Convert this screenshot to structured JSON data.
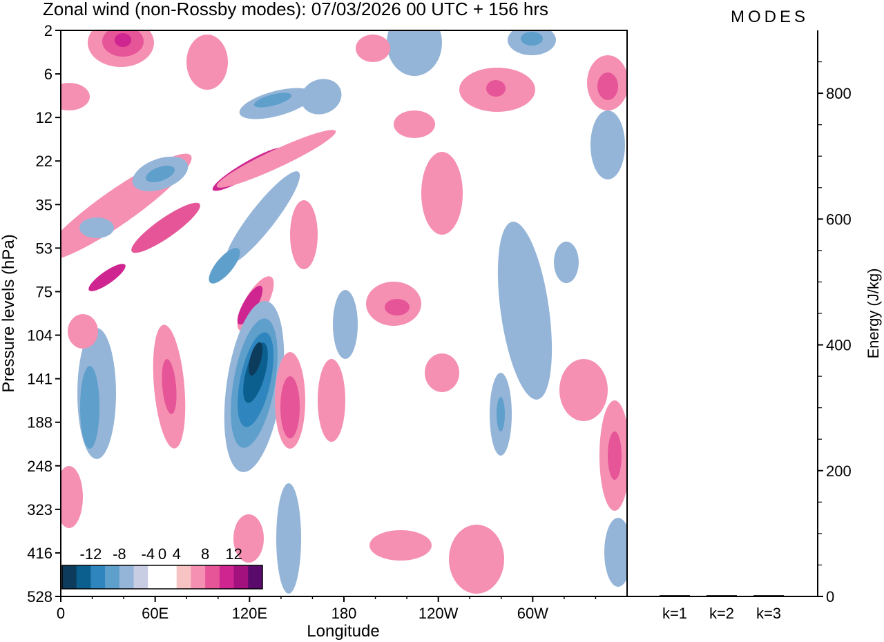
{
  "chart_data": [
    {
      "type": "heatmap",
      "title": "Zonal wind (non-Rossby modes):  07/03/2026  00 UTC  + 156 hrs",
      "xlabel": "Longitude",
      "ylabel": "Pressure levels (hPa)",
      "x_ticks": [
        "0",
        "60E",
        "120E",
        "180",
        "120W",
        "60W"
      ],
      "y_ticks": [
        "2",
        "6",
        "12",
        "22",
        "35",
        "53",
        "75",
        "104",
        "141",
        "188",
        "248",
        "323",
        "416",
        "528"
      ],
      "colorbar": {
        "labels": [
          "-12",
          "-8",
          "-4",
          "0",
          "4",
          "8",
          "12"
        ],
        "levels": [
          -14,
          -12,
          -10,
          -8,
          -6,
          -4,
          -2,
          2,
          4,
          6,
          8,
          10,
          12,
          14
        ],
        "colors": [
          "#0d3b5c",
          "#0a5f8e",
          "#2f86be",
          "#5f9fcb",
          "#94b5d8",
          "#c9cde4",
          "#ffffff",
          "#ffffff",
          "#f8c3c3",
          "#f590b2",
          "#e55598",
          "#cf2590",
          "#a3117e",
          "#5a0a6b"
        ]
      },
      "features": [
        {
          "sign": "negative",
          "lon": 125,
          "level": 141,
          "peak": -14
        },
        {
          "sign": "positive",
          "lon": 118,
          "level": 75,
          "peak": 10
        },
        {
          "sign": "positive",
          "lon": 120,
          "level": 22,
          "peak": 10
        },
        {
          "sign": "positive",
          "lon": 40,
          "level": 2,
          "peak": 10
        },
        {
          "sign": "positive",
          "lon": 30,
          "level": 75,
          "peak": 8
        },
        {
          "sign": "negative",
          "lon": 95,
          "level": 53,
          "peak": -6
        },
        {
          "sign": "negative",
          "lon": 50,
          "level": 22,
          "peak": -6
        },
        {
          "sign": "negative",
          "lon": 25,
          "level": 141,
          "peak": -6
        },
        {
          "sign": "negative",
          "lon": 130,
          "level": 6,
          "peak": -6
        },
        {
          "sign": "negative",
          "lon": 280,
          "level": 188,
          "peak": -6
        },
        {
          "sign": "positive",
          "lon": 140,
          "level": 188,
          "peak": 6
        },
        {
          "sign": "positive",
          "lon": 355,
          "level": 248,
          "peak": 6
        }
      ]
    },
    {
      "type": "bar",
      "ylabel": "Energy (J/kg)",
      "categories": [
        "k=1",
        "k=2",
        "k=3"
      ],
      "values": [
        2,
        2,
        2
      ],
      "ylim": [
        0,
        900
      ],
      "y_ticks": [
        "0",
        "200",
        "400",
        "600",
        "800"
      ]
    }
  ],
  "logo": "MODES",
  "colors": {
    "axis": "#000000",
    "logo": "#555555"
  }
}
